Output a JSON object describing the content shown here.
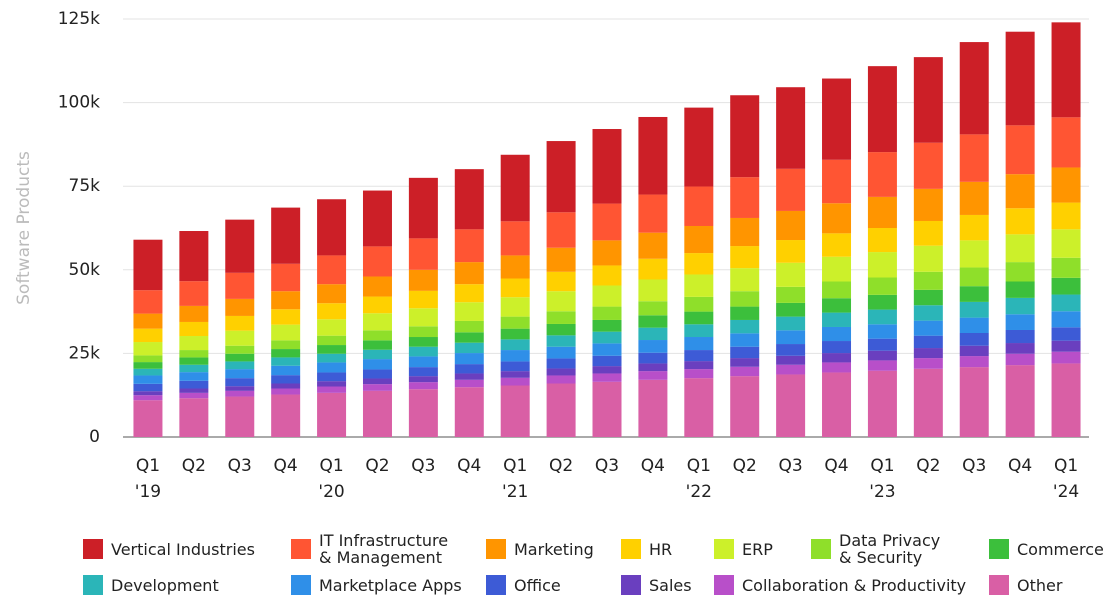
{
  "chart_data": {
    "type": "stacked_bar",
    "y_label": "Software Products",
    "categories": [
      "Q1\n'19",
      "Q2",
      "Q3",
      "Q4",
      "Q1\n'20",
      "Q2",
      "Q3",
      "Q4",
      "Q1\n'21",
      "Q2",
      "Q3",
      "Q4",
      "Q1\n'22",
      "Q2",
      "Q3",
      "Q4",
      "Q1\n'23",
      "Q2",
      "Q3",
      "Q4",
      "Q1\n'24"
    ],
    "ylim": [
      0,
      125000
    ],
    "yticks": [
      0,
      {
        "value": 25000,
        "label": "25k"
      },
      {
        "value": 50000,
        "label": "50k"
      },
      {
        "value": 75000,
        "label": "75k"
      },
      {
        "value": 100000,
        "label": "100k"
      },
      {
        "value": 125000,
        "label": "125k"
      }
    ],
    "grid": true,
    "series": [
      {
        "name": "Vertical Industries",
        "color": "#cc1f27",
        "values": [
          15100,
          15000,
          15900,
          16800,
          16800,
          16700,
          18100,
          18000,
          19900,
          21300,
          22300,
          23200,
          23600,
          24500,
          24400,
          24300,
          25700,
          25600,
          27600,
          28000,
          28400
        ]
      },
      {
        "name": "IT Infrastructure\n& Management",
        "color": "#ff5533",
        "values": [
          7000,
          7400,
          7800,
          8200,
          8600,
          9000,
          9400,
          9800,
          10200,
          10600,
          11000,
          11400,
          11800,
          12200,
          12600,
          13000,
          13400,
          13800,
          14200,
          14600,
          15000
        ]
      },
      {
        "name": "Marketing",
        "color": "#ff9500",
        "values": [
          4500,
          4800,
          5100,
          5400,
          5700,
          6000,
          6300,
          6600,
          6900,
          7200,
          7500,
          7800,
          8100,
          8400,
          8700,
          9000,
          9300,
          9600,
          9900,
          10200,
          10500
        ]
      },
      {
        "name": "HR",
        "color": "#ffd000",
        "values": [
          4000,
          4200,
          4400,
          4600,
          4800,
          5000,
          5200,
          5400,
          5600,
          5800,
          6000,
          6200,
          6400,
          6600,
          6800,
          7000,
          7200,
          7400,
          7600,
          7800,
          8000
        ]
      },
      {
        "name": "ERP",
        "color": "#ccf02a",
        "values": [
          4000,
          4200,
          4500,
          4700,
          4900,
          5100,
          5400,
          5600,
          5800,
          6000,
          6300,
          6500,
          6700,
          6900,
          7200,
          7400,
          7600,
          7800,
          8100,
          8300,
          8500
        ]
      },
      {
        "name": "Data Privacy\n& Security",
        "color": "#8fdf2a",
        "values": [
          2000,
          2200,
          2400,
          2600,
          2800,
          3000,
          3200,
          3400,
          3600,
          3800,
          4000,
          4200,
          4400,
          4600,
          4800,
          5000,
          5200,
          5400,
          5600,
          5800,
          6000
        ]
      },
      {
        "name": "Commerce",
        "color": "#3cbf3c",
        "values": [
          2000,
          2200,
          2300,
          2500,
          2600,
          2800,
          2900,
          3100,
          3200,
          3400,
          3500,
          3700,
          3800,
          4000,
          4100,
          4300,
          4400,
          4600,
          4700,
          4900,
          5000
        ]
      },
      {
        "name": "Development",
        "color": "#2bb5b8",
        "values": [
          2000,
          2200,
          2300,
          2500,
          2600,
          2800,
          2900,
          3100,
          3200,
          3400,
          3500,
          3700,
          3800,
          4000,
          4100,
          4300,
          4400,
          4600,
          4700,
          4900,
          5000
        ]
      },
      {
        "name": "Marketplace Apps",
        "color": "#2f8fe8",
        "values": [
          2500,
          2600,
          2700,
          2800,
          3000,
          3100,
          3200,
          3300,
          3400,
          3500,
          3700,
          3800,
          3900,
          4000,
          4100,
          4200,
          4300,
          4500,
          4600,
          4700,
          4800
        ]
      },
      {
        "name": "Office",
        "color": "#3d5bd6",
        "values": [
          2200,
          2300,
          2400,
          2500,
          2600,
          2700,
          2700,
          2800,
          2900,
          3000,
          3100,
          3200,
          3300,
          3400,
          3500,
          3600,
          3600,
          3700,
          3800,
          3900,
          4000
        ]
      },
      {
        "name": "Sales",
        "color": "#6a3fbf",
        "values": [
          1200,
          1300,
          1400,
          1500,
          1600,
          1700,
          1800,
          1900,
          2000,
          2100,
          2200,
          2300,
          2400,
          2600,
          2700,
          2800,
          2900,
          3000,
          3100,
          3200,
          3300
        ]
      },
      {
        "name": "Collaboration & Productivity",
        "color": "#b84fc9",
        "values": [
          1500,
          1600,
          1700,
          1800,
          1900,
          2000,
          2100,
          2200,
          2300,
          2400,
          2500,
          2600,
          2700,
          2800,
          2900,
          3000,
          3100,
          3200,
          3300,
          3400,
          3500
        ]
      },
      {
        "name": "Other",
        "color": "#d95fa5",
        "values": [
          11000,
          11600,
          12100,
          12700,
          13200,
          13800,
          14300,
          14900,
          15400,
          16000,
          16500,
          17100,
          17600,
          18200,
          18700,
          19300,
          19800,
          20400,
          20900,
          21500,
          22000
        ]
      }
    ]
  }
}
